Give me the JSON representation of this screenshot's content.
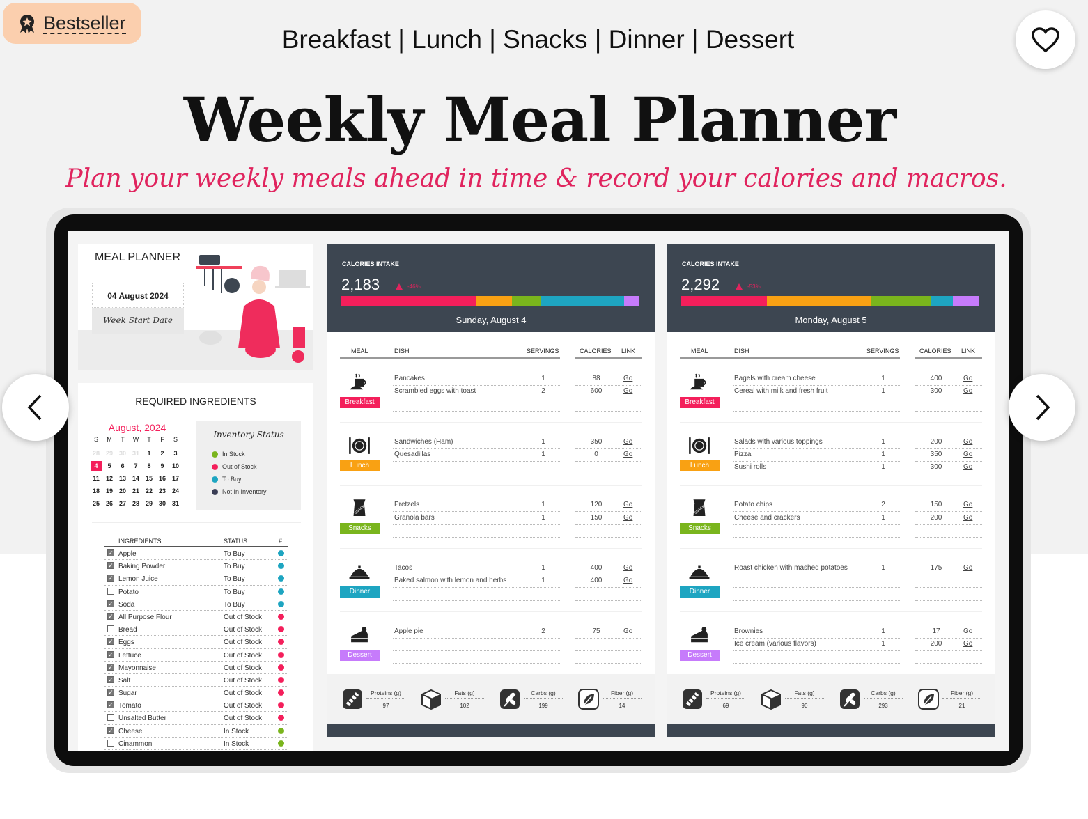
{
  "badge": {
    "label": "Bestseller",
    "icon": "award-icon"
  },
  "top_nav": "Breakfast | Lunch | Snacks | Dinner | Dessert",
  "title": "Weekly Meal Planner",
  "subtitle": "Plan your weekly meals ahead in time & record your calories and macros.",
  "colors": {
    "accent": "#e0245e",
    "breakfast": "#f41f5b",
    "lunch": "#f9a113",
    "snacks": "#7ab51d",
    "dinner": "#1ea5c1",
    "dessert": "#c67bfb",
    "header": "#3d4651",
    "in_stock": "#7ab51d",
    "out_of_stock": "#f41f5b",
    "to_buy": "#1ea5c1",
    "not_in_inventory": "#3a3d55"
  },
  "planner": {
    "title": "MEAL PLANNER",
    "date": "04 August 2024",
    "date_label": "Week Start Date"
  },
  "ingredients_card": {
    "title": "REQUIRED INGREDIENTS",
    "calendar": {
      "month": "August, 2024",
      "weekdays": [
        "S",
        "M",
        "T",
        "W",
        "T",
        "F",
        "S"
      ],
      "weeks": [
        [
          "28",
          "29",
          "30",
          "31",
          "1",
          "2",
          "3"
        ],
        [
          "4",
          "5",
          "6",
          "7",
          "8",
          "9",
          "10"
        ],
        [
          "11",
          "12",
          "13",
          "14",
          "15",
          "16",
          "17"
        ],
        [
          "18",
          "19",
          "20",
          "21",
          "22",
          "23",
          "24"
        ],
        [
          "25",
          "26",
          "27",
          "28",
          "29",
          "30",
          "31"
        ]
      ],
      "selected": "4"
    },
    "legend": {
      "title": "Inventory Status",
      "items": [
        {
          "label": "In Stock",
          "color": "#7ab51d"
        },
        {
          "label": "Out of Stock",
          "color": "#f41f5b"
        },
        {
          "label": "To Buy",
          "color": "#1ea5c1"
        },
        {
          "label": "Not In Inventory",
          "color": "#3a3d55"
        }
      ]
    },
    "columns": [
      "INGREDIENTS",
      "STATUS",
      "#"
    ],
    "rows": [
      {
        "name": "Apple",
        "checked": true,
        "status": "To Buy",
        "color": "#1ea5c1"
      },
      {
        "name": "Baking Powder",
        "checked": true,
        "status": "To Buy",
        "color": "#1ea5c1"
      },
      {
        "name": "Lemon Juice",
        "checked": true,
        "status": "To Buy",
        "color": "#1ea5c1"
      },
      {
        "name": "Potato",
        "checked": false,
        "status": "To Buy",
        "color": "#1ea5c1"
      },
      {
        "name": "Soda",
        "checked": true,
        "status": "To Buy",
        "color": "#1ea5c1"
      },
      {
        "name": "All Purpose Flour",
        "checked": true,
        "status": "Out of Stock",
        "color": "#f41f5b"
      },
      {
        "name": "Bread",
        "checked": false,
        "status": "Out of Stock",
        "color": "#f41f5b"
      },
      {
        "name": "Eggs",
        "checked": true,
        "status": "Out of Stock",
        "color": "#f41f5b"
      },
      {
        "name": "Lettuce",
        "checked": true,
        "status": "Out of Stock",
        "color": "#f41f5b"
      },
      {
        "name": "Mayonnaise",
        "checked": true,
        "status": "Out of Stock",
        "color": "#f41f5b"
      },
      {
        "name": "Salt",
        "checked": true,
        "status": "Out of Stock",
        "color": "#f41f5b"
      },
      {
        "name": "Sugar",
        "checked": true,
        "status": "Out of Stock",
        "color": "#f41f5b"
      },
      {
        "name": "Tomato",
        "checked": true,
        "status": "Out of Stock",
        "color": "#f41f5b"
      },
      {
        "name": "Unsalted Butter",
        "checked": false,
        "status": "Out of Stock",
        "color": "#f41f5b"
      },
      {
        "name": "Cheese",
        "checked": true,
        "status": "In Stock",
        "color": "#7ab51d"
      },
      {
        "name": "Cinammon",
        "checked": false,
        "status": "In Stock",
        "color": "#7ab51d"
      }
    ]
  },
  "columns": {
    "meal": "MEAL",
    "dish": "DISH",
    "servings": "SERVINGS",
    "calories": "CALORIES",
    "link": "LINK"
  },
  "days": [
    {
      "header": "CALORIES INTAKE",
      "total": "2,183",
      "change": "-46%",
      "date": "Sunday, August 4",
      "meals": [
        {
          "meal": "Breakfast",
          "icon": "breakfast-icon",
          "color": "#f41f5b",
          "items": [
            {
              "dish": "Pancakes",
              "servings": "1",
              "calories": "88",
              "link": "Go"
            },
            {
              "dish": "Scrambled eggs with toast",
              "servings": "2",
              "calories": "600",
              "link": "Go"
            }
          ]
        },
        {
          "meal": "Lunch",
          "icon": "plate-cutlery-icon",
          "color": "#f9a113",
          "items": [
            {
              "dish": "Sandwiches (Ham)",
              "servings": "1",
              "calories": "350",
              "link": "Go"
            },
            {
              "dish": "Quesadillas",
              "servings": "1",
              "calories": "0",
              "link": "Go"
            }
          ]
        },
        {
          "meal": "Snacks",
          "icon": "snack-bag-icon",
          "color": "#7ab51d",
          "items": [
            {
              "dish": "Pretzels",
              "servings": "1",
              "calories": "120",
              "link": "Go"
            },
            {
              "dish": "Granola bars",
              "servings": "1",
              "calories": "150",
              "link": "Go"
            }
          ]
        },
        {
          "meal": "Dinner",
          "icon": "cloche-icon",
          "color": "#1ea5c1",
          "items": [
            {
              "dish": "Tacos",
              "servings": "1",
              "calories": "400",
              "link": "Go"
            },
            {
              "dish": "Baked salmon with lemon and herbs",
              "servings": "1",
              "calories": "400",
              "link": "Go"
            }
          ]
        },
        {
          "meal": "Dessert",
          "icon": "cake-icon",
          "color": "#c67bfb",
          "items": [
            {
              "dish": "Apple pie",
              "servings": "2",
              "calories": "75",
              "link": "Go"
            }
          ]
        }
      ],
      "macros": [
        {
          "label": "Proteins (g)",
          "value": "97",
          "icon": "protein-icon"
        },
        {
          "label": "Fats (g)",
          "value": "102",
          "icon": "fat-cube-icon"
        },
        {
          "label": "Carbs (g)",
          "value": "199",
          "icon": "wheat-icon"
        },
        {
          "label": "Fiber (g)",
          "value": "14",
          "icon": "leaf-icon"
        }
      ]
    },
    {
      "header": "CALORIES INTAKE",
      "total": "2,292",
      "change": "-53%",
      "date": "Monday, August 5",
      "meals": [
        {
          "meal": "Breakfast",
          "icon": "breakfast-icon",
          "color": "#f41f5b",
          "items": [
            {
              "dish": "Bagels with cream cheese",
              "servings": "1",
              "calories": "400",
              "link": "Go"
            },
            {
              "dish": "Cereal with milk and fresh fruit",
              "servings": "1",
              "calories": "300",
              "link": "Go"
            }
          ]
        },
        {
          "meal": "Lunch",
          "icon": "plate-cutlery-icon",
          "color": "#f9a113",
          "items": [
            {
              "dish": "Salads with various toppings",
              "servings": "1",
              "calories": "200",
              "link": "Go"
            },
            {
              "dish": "Pizza",
              "servings": "1",
              "calories": "350",
              "link": "Go"
            },
            {
              "dish": "Sushi rolls",
              "servings": "1",
              "calories": "300",
              "link": "Go"
            }
          ]
        },
        {
          "meal": "Snacks",
          "icon": "snack-bag-icon",
          "color": "#7ab51d",
          "items": [
            {
              "dish": "Potato chips",
              "servings": "2",
              "calories": "150",
              "link": "Go"
            },
            {
              "dish": "Cheese and crackers",
              "servings": "1",
              "calories": "200",
              "link": "Go"
            }
          ]
        },
        {
          "meal": "Dinner",
          "icon": "cloche-icon",
          "color": "#1ea5c1",
          "items": [
            {
              "dish": "Roast chicken with mashed potatoes",
              "servings": "1",
              "calories": "175",
              "link": "Go"
            }
          ]
        },
        {
          "meal": "Dessert",
          "icon": "cake-icon",
          "color": "#c67bfb",
          "items": [
            {
              "dish": "Brownies",
              "servings": "1",
              "calories": "17",
              "link": "Go"
            },
            {
              "dish": "Ice cream (various flavors)",
              "servings": "1",
              "calories": "200",
              "link": "Go"
            }
          ]
        }
      ],
      "macros": [
        {
          "label": "Proteins (g)",
          "value": "69",
          "icon": "protein-icon"
        },
        {
          "label": "Fats (g)",
          "value": "90",
          "icon": "fat-cube-icon"
        },
        {
          "label": "Carbs (g)",
          "value": "293",
          "icon": "wheat-icon"
        },
        {
          "label": "Fiber (g)",
          "value": "21",
          "icon": "leaf-icon"
        }
      ]
    }
  ]
}
